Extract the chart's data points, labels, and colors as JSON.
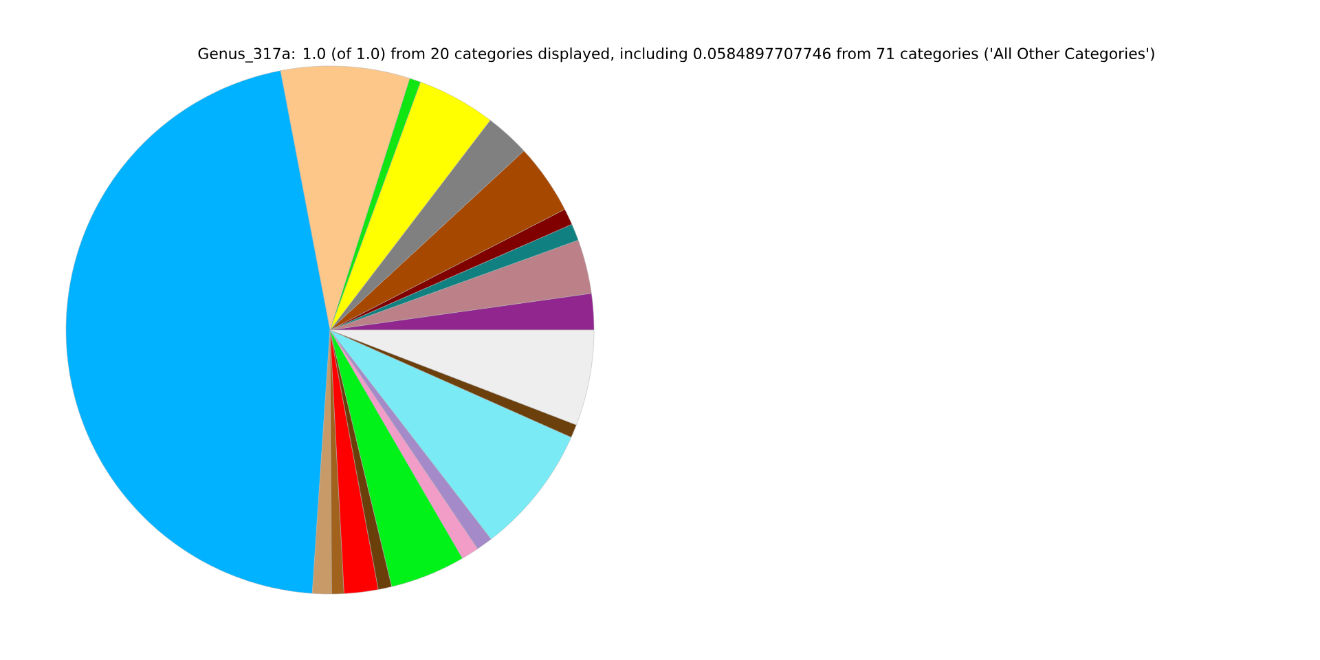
{
  "chart_data": {
    "type": "pie",
    "title": "Genus_317a: 1.0 (of 1.0) from 20 categories displayed, including 0.0584897707746 from 71 categories ('All Other Categories')",
    "categories": [
      null,
      null,
      null,
      null,
      null,
      null,
      null,
      null,
      null,
      null,
      null,
      null,
      null,
      null,
      null,
      null,
      null,
      null,
      null,
      null
    ],
    "values": [
      2.22,
      3.31,
      1.03,
      1.0,
      4.31,
      2.75,
      4.81,
      0.69,
      7.89,
      45.92,
      1.17,
      0.75,
      2.08,
      0.83,
      4.61,
      1.08,
      1.0,
      7.89,
      0.81,
      5.85
    ],
    "colors": [
      "#91268f",
      "#bc8088",
      "#108080",
      "#800000",
      "#a64800",
      "#808080",
      "#ffff00",
      "#12e612",
      "#fdc78a",
      "#00b2ff",
      "#c89a68",
      "#a0621c",
      "#ff0000",
      "#6b3f0a",
      "#00f218",
      "#f19dc8",
      "#a48ac8",
      "#7aeaf5",
      "#6b400c",
      "#eeeeee"
    ]
  }
}
